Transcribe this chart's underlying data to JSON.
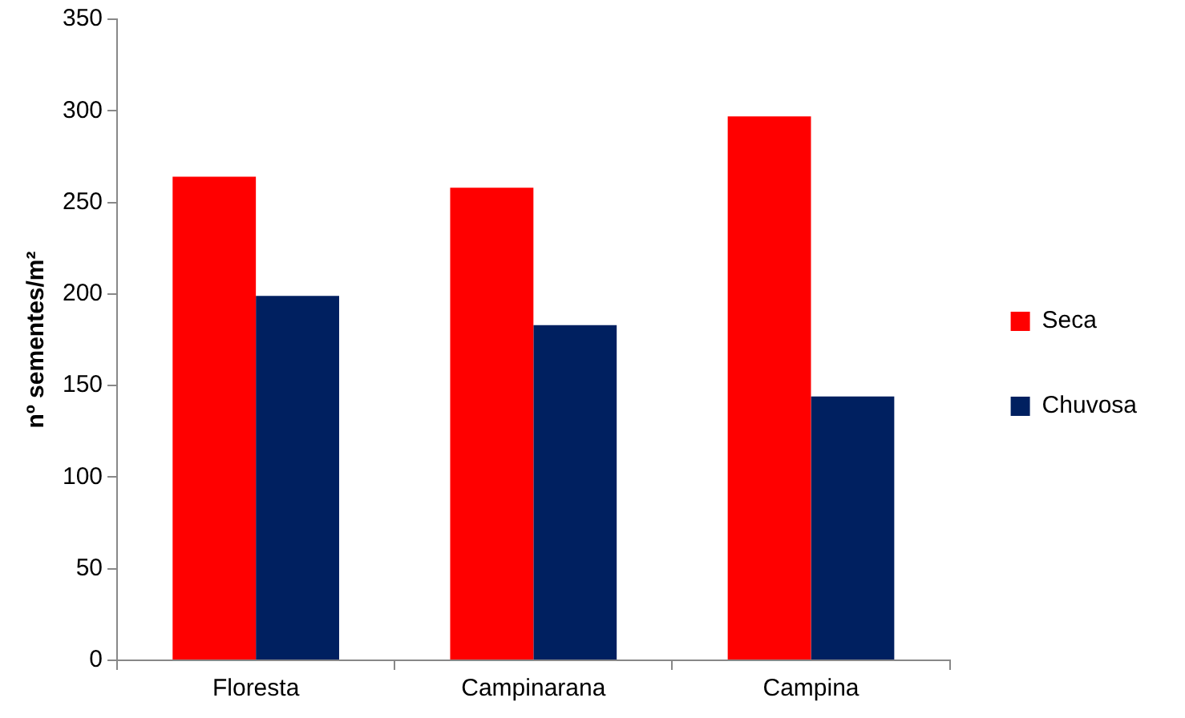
{
  "chart_data": {
    "type": "bar",
    "ylabel": "nº sementes/m²",
    "categories": [
      "Floresta",
      "Campinarana",
      "Campina"
    ],
    "series": [
      {
        "name": "Seca",
        "color": "#ff0000",
        "values": [
          264,
          258,
          297
        ]
      },
      {
        "name": "Chuvosa",
        "color": "#002060",
        "values": [
          199,
          183,
          144
        ]
      }
    ],
    "ylim": [
      0,
      350
    ],
    "yticks": [
      0,
      50,
      100,
      150,
      200,
      250,
      300,
      350
    ],
    "grid": false,
    "legend": "right"
  }
}
